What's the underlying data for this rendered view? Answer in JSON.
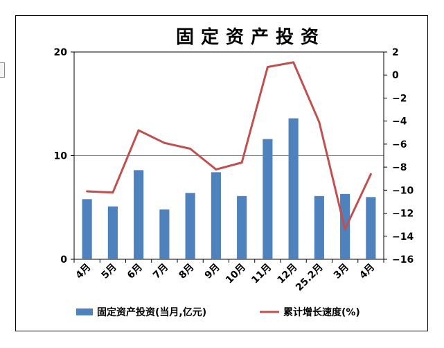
{
  "chart_data": {
    "type": "bar+line",
    "title": "固定资产投资",
    "categories": [
      "4月",
      "5月",
      "6月",
      "7月",
      "8月",
      "9月",
      "10月",
      "11月",
      "12月",
      "25.2月",
      "3月",
      "4月"
    ],
    "series": [
      {
        "name": "固定资产投资(当月,亿元)",
        "type": "bar",
        "axis": "left",
        "color": "#4f81bd",
        "values": [
          5.8,
          5.1,
          8.6,
          4.8,
          6.4,
          8.4,
          6.1,
          11.6,
          13.6,
          6.1,
          6.3,
          6.0
        ]
      },
      {
        "name": "累计增长速度(%)",
        "type": "line",
        "axis": "right",
        "color": "#c0504d",
        "values": [
          -10.1,
          -10.2,
          -4.8,
          -5.9,
          -6.4,
          -8.2,
          -7.6,
          0.7,
          1.1,
          -4.1,
          -13.4,
          -8.6
        ]
      }
    ],
    "y_left": {
      "min": 0,
      "max": 20,
      "ticks": [
        0,
        10,
        20
      ]
    },
    "y_right": {
      "min": -16,
      "max": 2,
      "ticks": [
        2,
        0,
        -2,
        -4,
        -6,
        -8,
        -10,
        -12,
        -14,
        -16
      ]
    },
    "gridlines": [
      10
    ],
    "legend_position": "bottom"
  }
}
